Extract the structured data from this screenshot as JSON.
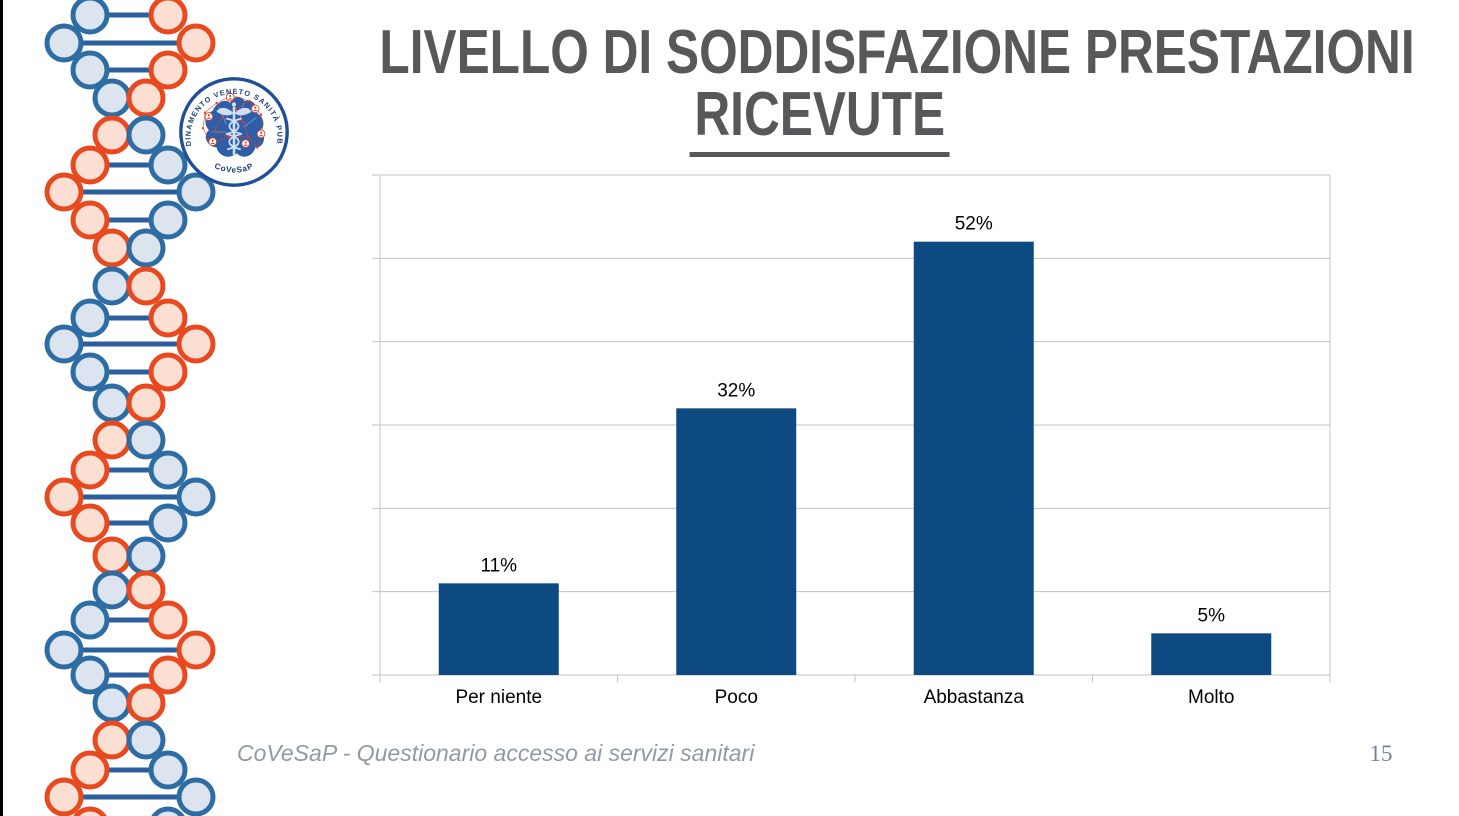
{
  "slide": {
    "title_line1": "LIVELLO DI SODDISFAZIONE PRESTAZIONI",
    "title_line2": "RICEVUTE",
    "title_color": "#58585a",
    "footer": "CoVeSaP - Questionario accesso ai servizi sanitari",
    "page_number": "15"
  },
  "logo": {
    "ring_text": "COORDINAMENTO VENETO SANITÀ PUBBLICA",
    "bottom_text": "CoVeSaP"
  },
  "chart_data": {
    "type": "bar",
    "categories": [
      "Per niente",
      "Poco",
      "Abbastanza",
      "Molto"
    ],
    "values": [
      11,
      32,
      52,
      5
    ],
    "data_labels": [
      "11%",
      "32%",
      "52%",
      "5%"
    ],
    "title": "",
    "xlabel": "",
    "ylabel": "",
    "ylim": [
      0,
      60
    ],
    "gridline_step": 10,
    "grid": true,
    "legend": "none",
    "bar_color": "#0d4a81",
    "grid_color": "#c3c3c3",
    "label_color": "#000000",
    "label_font_px": 19
  },
  "decor": {
    "dna_blue_stroke": "#2e6ca4",
    "dna_blue_fill": "#dce4f0",
    "dna_orange_stroke": "#e8491f",
    "dna_orange_fill": "#fadfd2",
    "dna_connector": "#2b5e9c",
    "logo_ring_blue": "#1e4e9a",
    "logo_map_blue": "#2d5fa8",
    "logo_red": "#d8402c",
    "logo_caduceus": "#cfe0f2"
  }
}
